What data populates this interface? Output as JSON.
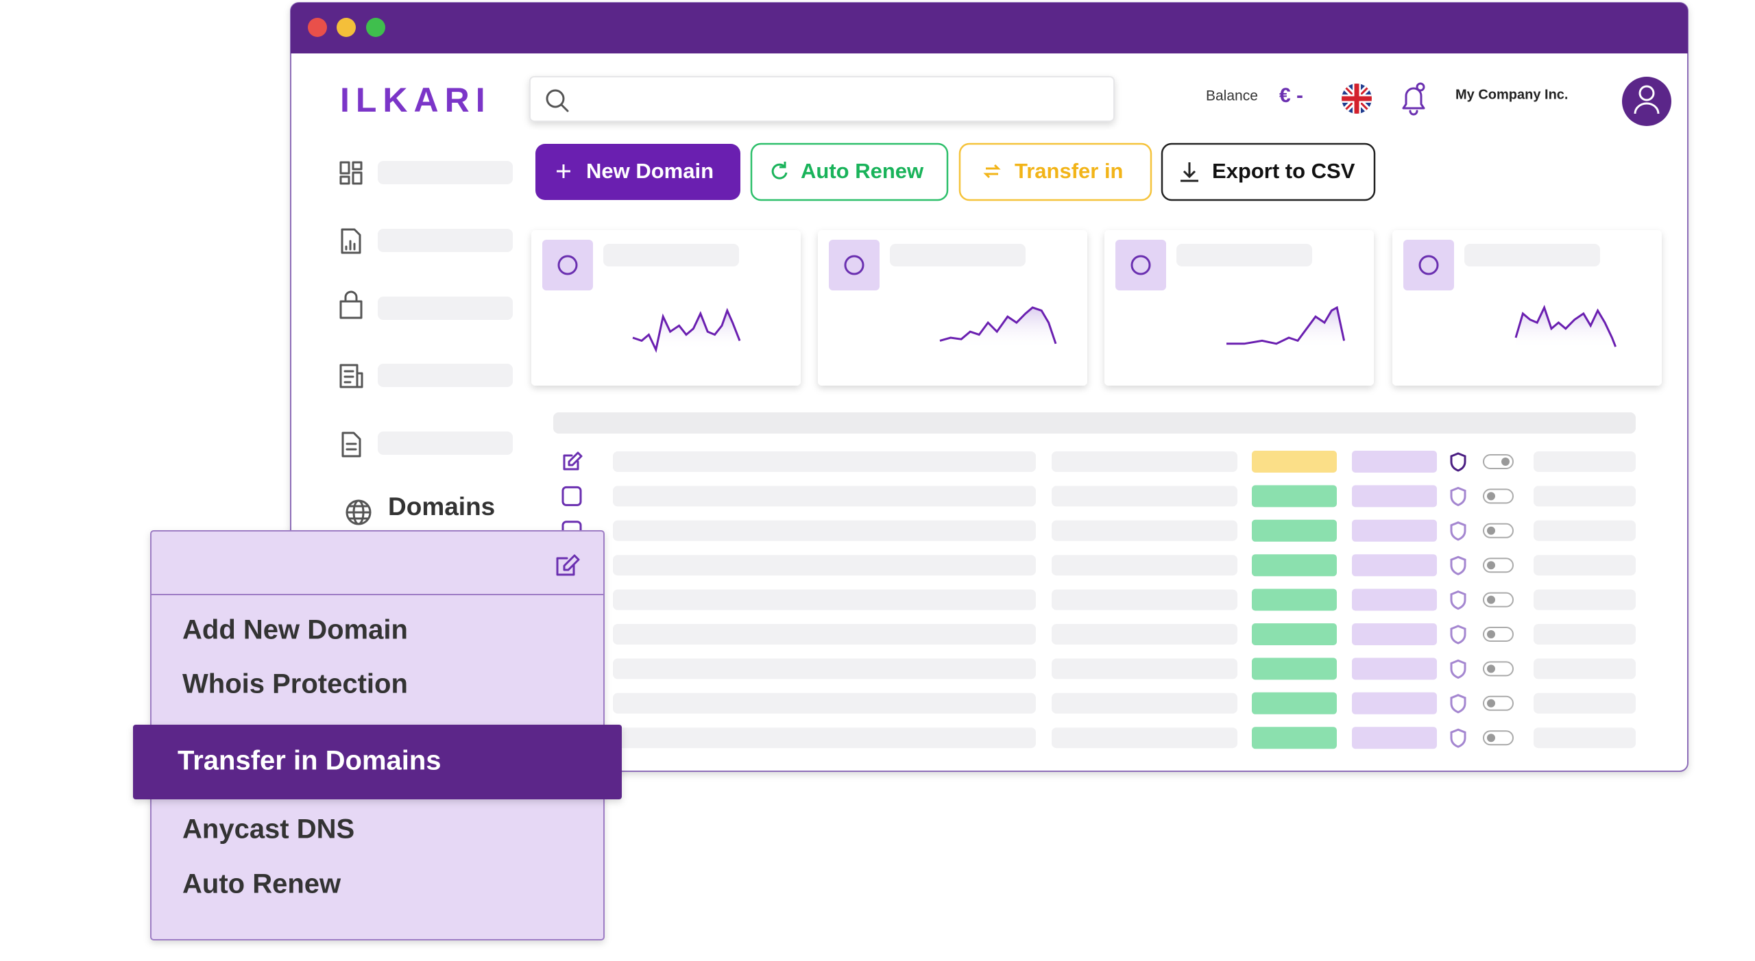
{
  "header": {
    "logo": "ILKARI",
    "balance_label": "Balance",
    "balance_value": "€ -",
    "company": "My Company Inc."
  },
  "toolbar": {
    "buttons": [
      "New Domain",
      "Auto Renew",
      "Transfer in",
      "Export to CSV"
    ]
  },
  "sidebar": {
    "active": "Domains"
  },
  "menu": {
    "items": [
      "Add New Domain",
      "Whois Protection",
      "Transfer in Domains",
      "Anycast DNS",
      "Auto Renew"
    ]
  }
}
